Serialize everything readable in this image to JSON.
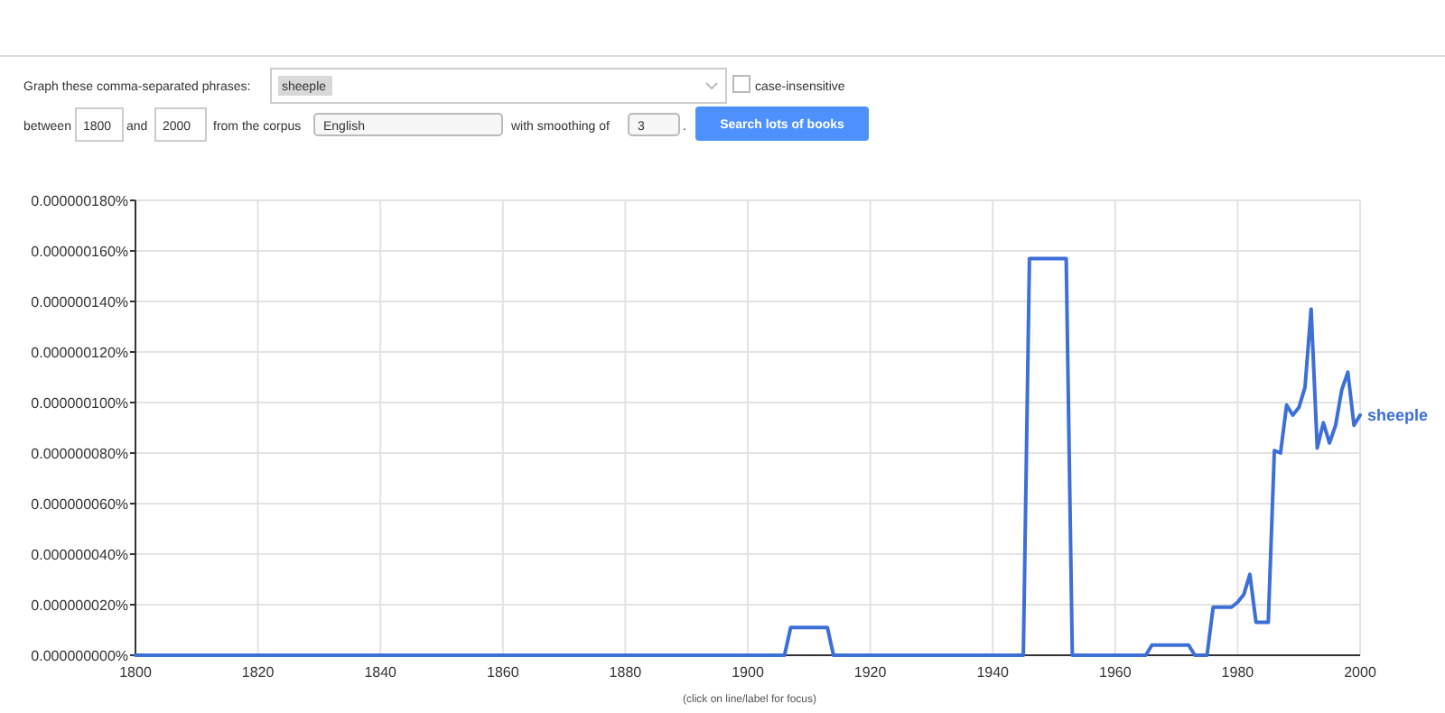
{
  "chart_data": {
    "type": "line",
    "xlim": [
      1800,
      2000
    ],
    "ylim": [
      0,
      1.8e-07
    ],
    "xticks": [
      1800,
      1820,
      1840,
      1860,
      1880,
      1900,
      1920,
      1940,
      1960,
      1980,
      2000
    ],
    "yticks": [
      {
        "value": 0,
        "label": "0.000000000%"
      },
      {
        "value": 2e-08,
        "label": "0.000000020%"
      },
      {
        "value": 4e-08,
        "label": "0.000000040%"
      },
      {
        "value": 6e-08,
        "label": "0.000000060%"
      },
      {
        "value": 8e-08,
        "label": "0.000000080%"
      },
      {
        "value": 1e-07,
        "label": "0.000000100%"
      },
      {
        "value": 1.2e-07,
        "label": "0.000000120%"
      },
      {
        "value": 1.4e-07,
        "label": "0.000000140%"
      },
      {
        "value": 1.6e-07,
        "label": "0.000000160%"
      },
      {
        "value": 1.8e-07,
        "label": "0.000000180%"
      }
    ],
    "grid": true,
    "series": [
      {
        "name": "sheeple",
        "color": "#3d6fd8",
        "x": [
          1800,
          1906,
          1907,
          1913,
          1914,
          1945,
          1946,
          1952,
          1953,
          1965,
          1966,
          1972,
          1973,
          1975,
          1976,
          1979,
          1980,
          1981,
          1982,
          1983,
          1985,
          1986,
          1987,
          1988,
          1989,
          1990,
          1991,
          1992,
          1993,
          1994,
          1995,
          1996,
          1997,
          1998,
          1999,
          2000
        ],
        "values": [
          0,
          0,
          1.1e-08,
          1.1e-08,
          0,
          0,
          1.57e-07,
          1.57e-07,
          0,
          0,
          4e-09,
          4e-09,
          0,
          0,
          1.9e-08,
          1.9e-08,
          2.1e-08,
          2.4e-08,
          3.2e-08,
          1.3e-08,
          1.3e-08,
          8.1e-08,
          8e-08,
          9.9e-08,
          9.5e-08,
          9.8e-08,
          1.06e-07,
          1.37e-07,
          8.2e-08,
          9.2e-08,
          8.4e-08,
          9.1e-08,
          1.05e-07,
          1.12e-07,
          9.1e-08,
          9.5e-08
        ]
      }
    ],
    "annotations": [
      "Graph these comma-separated phrases:",
      "sheeple",
      "case-insensitive",
      "between",
      "1800",
      "and",
      "2000",
      "from the corpus",
      "English",
      "with smoothing of",
      "3",
      ".",
      "Search lots of books",
      "(click on line/label for focus)"
    ]
  }
}
